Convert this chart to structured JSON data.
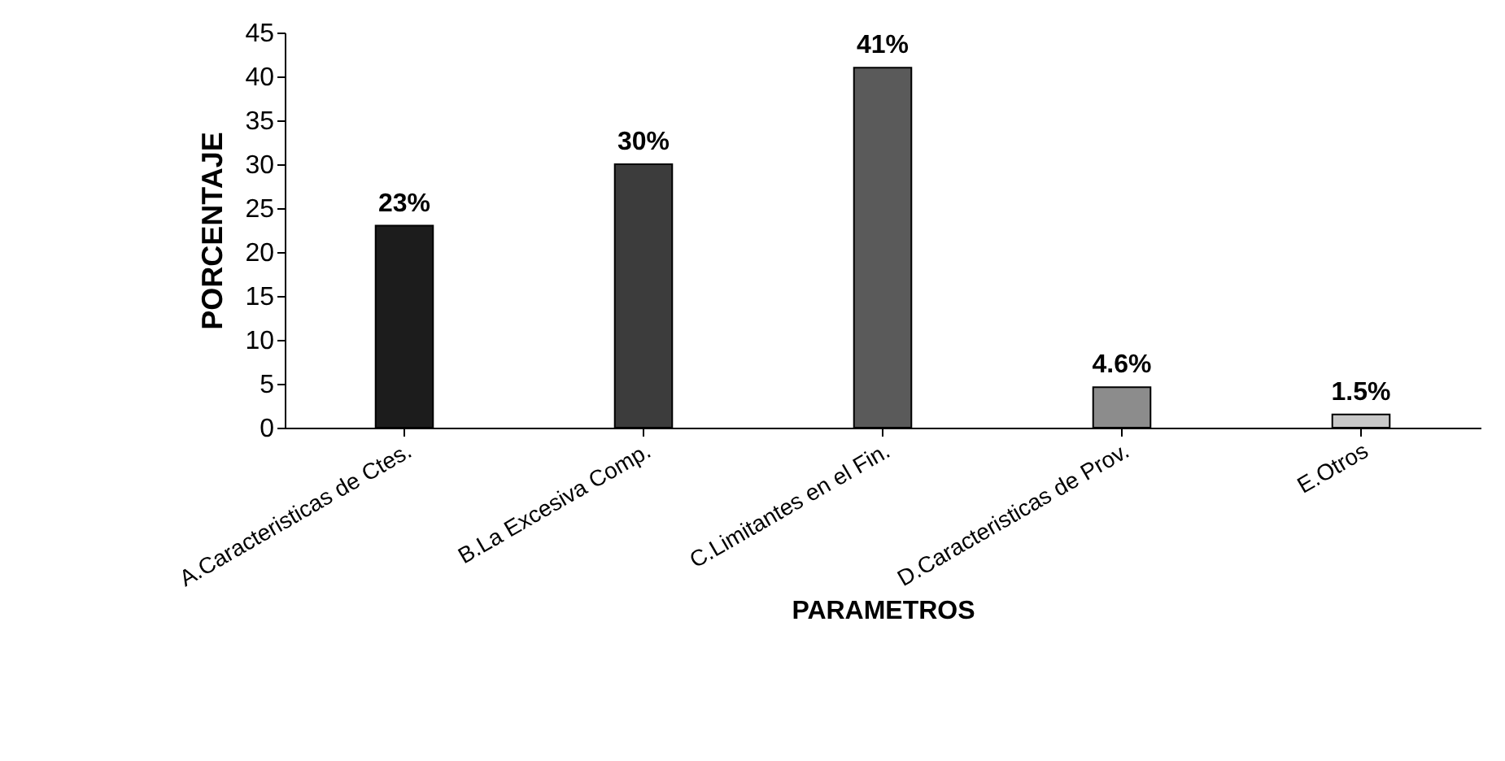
{
  "chart_data": {
    "type": "bar",
    "xlabel": "PARAMETROS",
    "ylabel": "PORCENTAJE",
    "categories": [
      "A.Caracteristicas de Ctes.",
      "B.La Excesiva Comp.",
      "C.Limitantes en el Fin.",
      "D.Caracteristicas de Prov.",
      "E.Otros"
    ],
    "values": [
      23,
      30,
      41,
      4.6,
      1.5
    ],
    "colors": [
      "#1c1c1c",
      "#3c3c3c",
      "#5a5a5a",
      "#8c8c8c",
      "#c8c8c8"
    ],
    "value_labels": [
      "23%",
      "30%",
      "41%",
      "4.6%",
      "1.5%"
    ],
    "ylim": [
      0,
      45
    ],
    "yticks": [
      0,
      5,
      10,
      15,
      20,
      25,
      30,
      35,
      40,
      45
    ],
    "grid": false
  }
}
